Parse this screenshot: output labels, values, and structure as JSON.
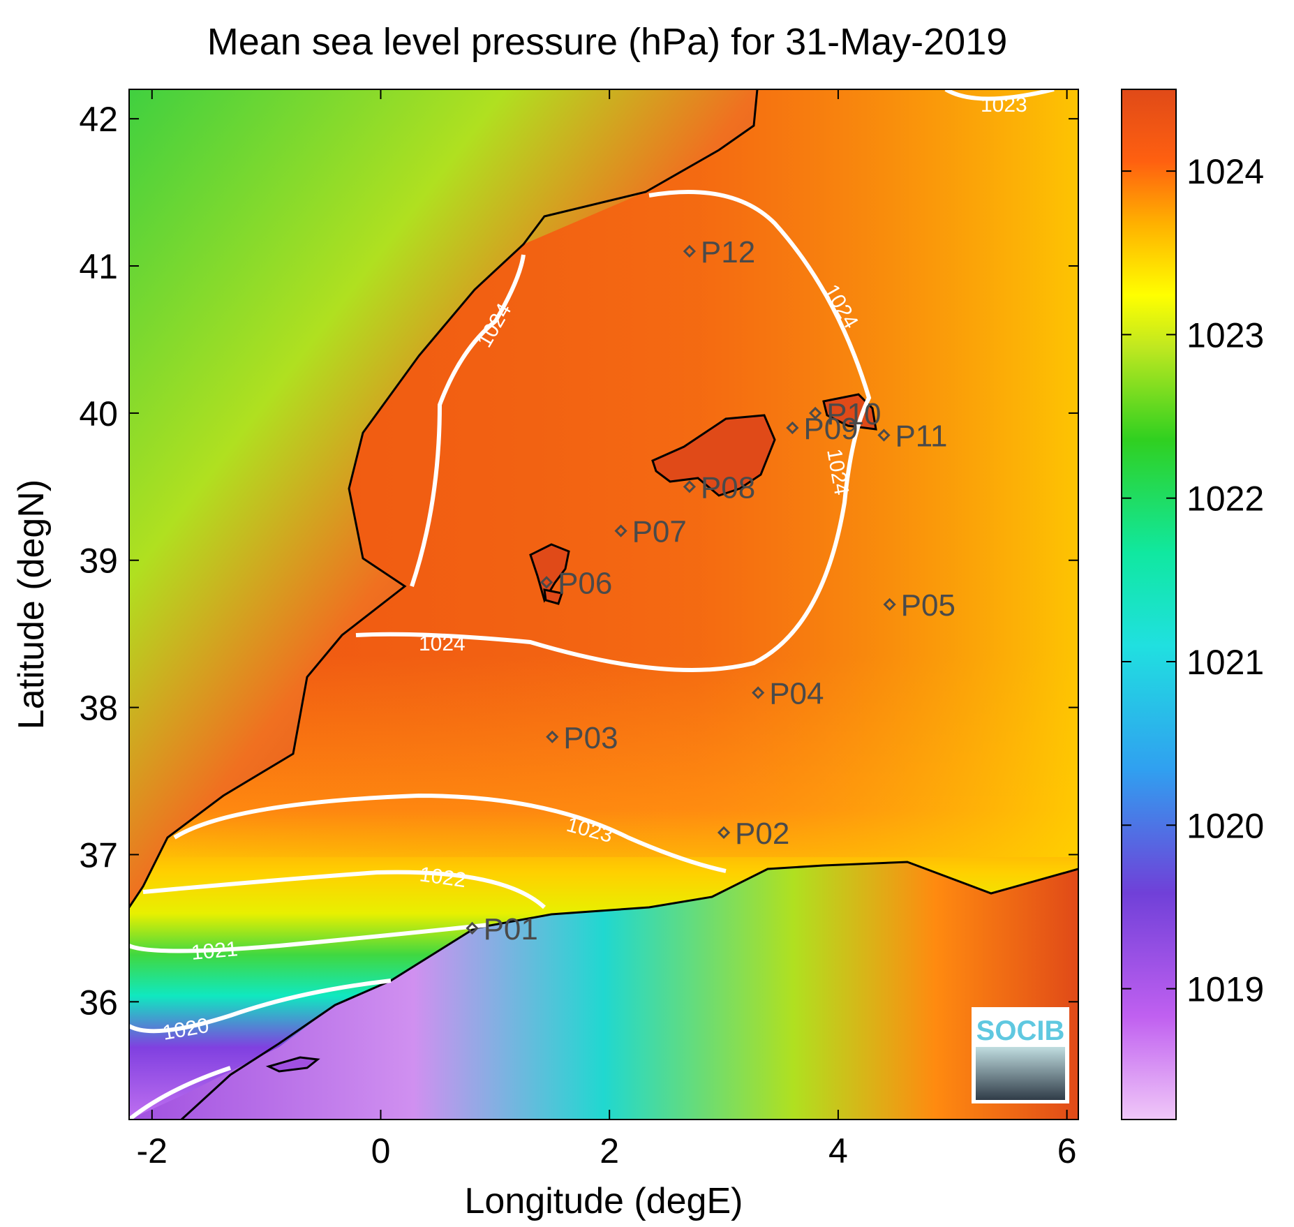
{
  "title": "Mean sea level pressure (hPa) for 31-May-2019",
  "map": {
    "xlabel": "Longitude (degE)",
    "ylabel": "Latitude (degN)",
    "xlim": [
      -2.2,
      6.1
    ],
    "ylim": [
      35.2,
      42.2
    ],
    "xticks": [
      -2,
      0,
      2,
      4,
      6
    ],
    "yticks": [
      36,
      37,
      38,
      39,
      40,
      41,
      42
    ],
    "stations": [
      {
        "name": "P01",
        "lon": 0.8,
        "lat": 36.5
      },
      {
        "name": "P02",
        "lon": 3.0,
        "lat": 37.15
      },
      {
        "name": "P03",
        "lon": 1.5,
        "lat": 37.8
      },
      {
        "name": "P04",
        "lon": 3.3,
        "lat": 38.1
      },
      {
        "name": "P05",
        "lon": 4.45,
        "lat": 38.7
      },
      {
        "name": "P06",
        "lon": 1.45,
        "lat": 38.85
      },
      {
        "name": "P07",
        "lon": 2.1,
        "lat": 39.2
      },
      {
        "name": "P08",
        "lon": 2.7,
        "lat": 39.5
      },
      {
        "name": "P09",
        "lon": 3.6,
        "lat": 39.9
      },
      {
        "name": "P10",
        "lon": 3.8,
        "lat": 40.0
      },
      {
        "name": "P11",
        "lon": 4.4,
        "lat": 39.85
      },
      {
        "name": "P12",
        "lon": 2.7,
        "lat": 41.1
      }
    ],
    "contour_labels": [
      "1024",
      "1024",
      "1024",
      "1024",
      "1023",
      "1023",
      "1022",
      "1021",
      "1020"
    ],
    "contour_color": "#ffffff",
    "coastline_color": "#000000",
    "station_marker_color": "#4a4a4a"
  },
  "colorbar": {
    "ticks": [
      "1024",
      "1023",
      "1022",
      "1021",
      "1020",
      "1019"
    ],
    "range": [
      1018.2,
      1024.5
    ],
    "colors": [
      "#d06f5e",
      "#e8b0f0",
      "#a040e0",
      "#6048d8",
      "#2aa0f0",
      "#20e0e0",
      "#10e8b0",
      "#20d030",
      "#b0e020",
      "#f0f000",
      "#ffc000",
      "#ff8000",
      "#f05a10",
      "#e04a18"
    ]
  },
  "logo": {
    "text": "SOCIB"
  }
}
